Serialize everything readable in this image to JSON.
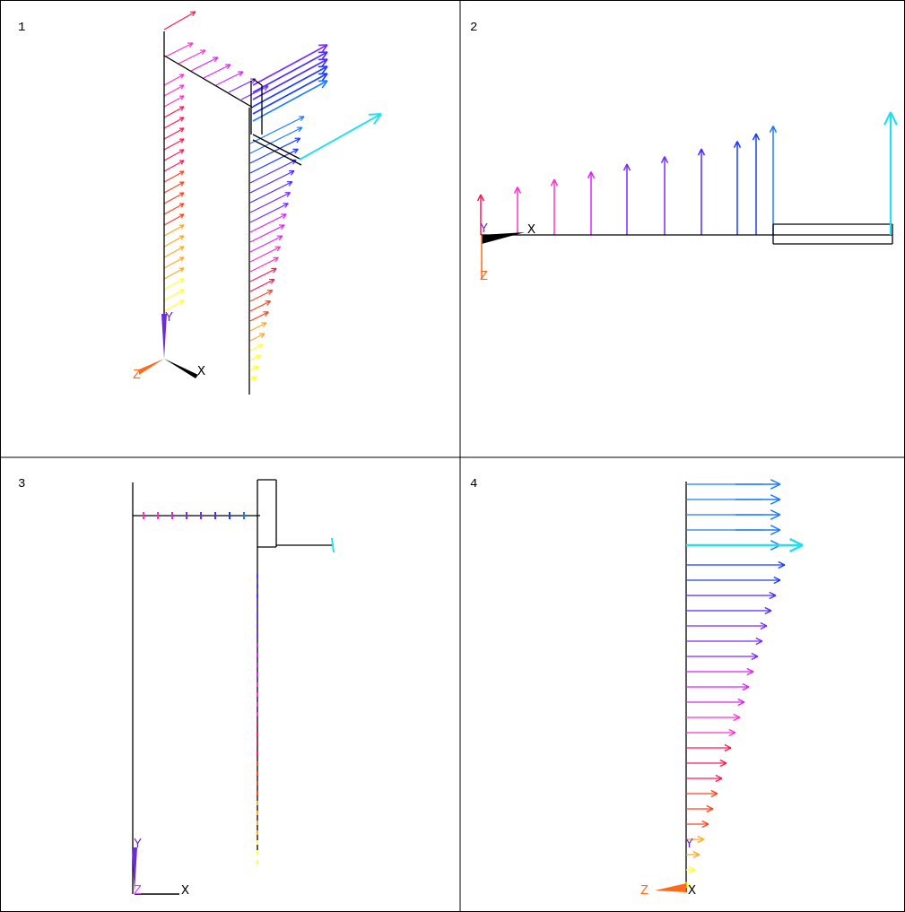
{
  "viewports": [
    {
      "label": "1",
      "axes": {
        "x": "X",
        "y": "Y",
        "z": "Z"
      }
    },
    {
      "label": "2",
      "axes": {
        "x": "X",
        "y": "Y",
        "z": "Z"
      }
    },
    {
      "label": "3",
      "axes": {
        "x": "X",
        "y": "Y",
        "z": "Z"
      }
    },
    {
      "label": "4",
      "axes": {
        "x": "X",
        "y": "Y",
        "z": "Z"
      }
    }
  ]
}
